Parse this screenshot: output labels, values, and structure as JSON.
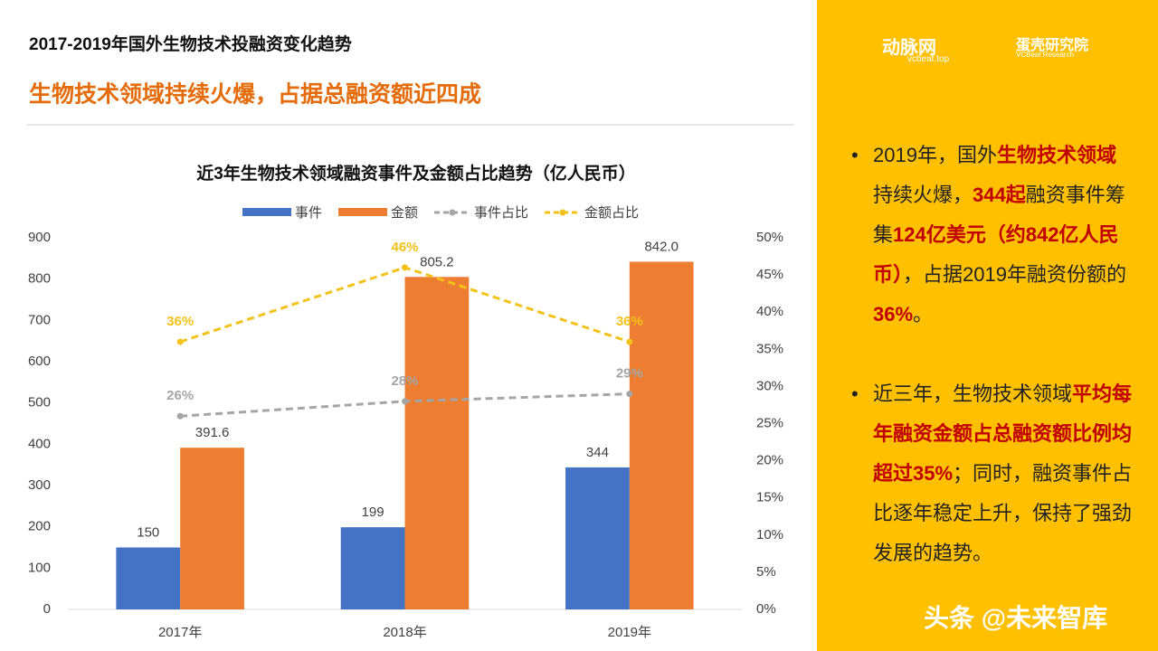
{
  "header": {
    "title": "2017-2019年国外生物技术投融资变化趋势",
    "subtitle": "生物技术领域持续火爆，占据总融资额近四成"
  },
  "logos": {
    "brand": "动脉网",
    "brand_url": "vcbeat.top",
    "research": "蛋壳研究院",
    "research_en": "VCBeat Research"
  },
  "bullets": [
    [
      {
        "text": "2019年，国外",
        "highlight": false
      },
      {
        "text": "生物技术领域",
        "highlight": true
      },
      {
        "text": "持续火爆，",
        "highlight": false
      },
      {
        "text": "344起",
        "highlight": true
      },
      {
        "text": "融资事件筹集",
        "highlight": false
      },
      {
        "text": "124亿美元（约842亿人民币）",
        "highlight": true
      },
      {
        "text": "，占据2019年融资份额的",
        "highlight": false
      },
      {
        "text": "36%",
        "highlight": true
      },
      {
        "text": "。",
        "highlight": false
      }
    ],
    [
      {
        "text": "近三年，生物技术领域",
        "highlight": false
      },
      {
        "text": "平均每年融资金额占总融资额比例均超过35%",
        "highlight": true
      },
      {
        "text": "；同时，融资事件占比逐年稳定上升，保持了强劲发展的趋势。",
        "highlight": false
      }
    ]
  ],
  "watermark": "头条 @未来智库",
  "chart_data": {
    "type": "bar",
    "title": "近3年生物技术领域融资事件及金额占比趋势（亿人民币）",
    "categories": [
      "2017年",
      "2018年",
      "2019年"
    ],
    "series": [
      {
        "name": "事件",
        "type": "bar",
        "color": "#4472c4",
        "values": [
          150,
          199,
          344
        ]
      },
      {
        "name": "金额",
        "type": "bar",
        "color": "#ed7d31",
        "values": [
          391.6,
          805.2,
          842.0
        ],
        "value_labels": [
          "391.6",
          "805.2",
          "842.0"
        ]
      },
      {
        "name": "事件占比",
        "type": "line",
        "axis": "y2",
        "dashed": true,
        "color": "#a5a5a5",
        "values": [
          26,
          28,
          29
        ],
        "value_labels": [
          "26%",
          "28%",
          "29%"
        ]
      },
      {
        "name": "金额占比",
        "type": "line",
        "axis": "y2",
        "dashed": true,
        "color": "#f2c21b",
        "values": [
          36,
          46,
          36
        ],
        "value_labels": [
          "36%",
          "46%",
          "36%"
        ]
      }
    ],
    "ylim": [
      0,
      900
    ],
    "yticks": [
      0,
      100,
      200,
      300,
      400,
      500,
      600,
      700,
      800,
      900
    ],
    "y2lim": [
      0,
      50
    ],
    "y2ticks": [
      {
        "value": 0,
        "label": "0%"
      },
      {
        "value": 5,
        "label": "5%"
      },
      {
        "value": 10,
        "label": "10%"
      },
      {
        "value": 15,
        "label": "15%"
      },
      {
        "value": 20,
        "label": "20%"
      },
      {
        "value": 25,
        "label": "25%"
      },
      {
        "value": 30,
        "label": "30%"
      },
      {
        "value": 35,
        "label": "35%"
      },
      {
        "value": 40,
        "label": "40%"
      },
      {
        "value": 45,
        "label": "45%"
      },
      {
        "value": 50,
        "label": "50%"
      }
    ],
    "legend": "top"
  }
}
